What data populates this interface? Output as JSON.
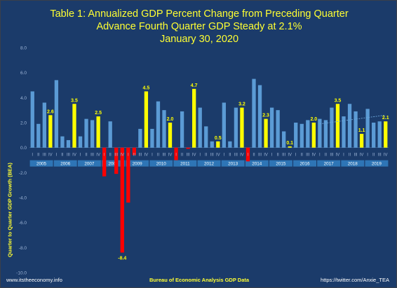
{
  "chart_data": {
    "type": "bar",
    "title": "Table 1: Annualized GDP Percent Change from Preceding Quarter",
    "subtitle": "Advance Fourth Quarter GDP Steady at 2.1%",
    "date": "January 30, 2020",
    "ylabel": "Quarter to Quarter GDP Growth (BEA)",
    "xlabel": "Bureau of Economic Analysis GDP Data",
    "ylim": [
      -10,
      8
    ],
    "yticks": [
      "8.0",
      "6.0",
      "4.0",
      "2.0",
      "0.0",
      "-2.0",
      "-4.0",
      "-6.0",
      "-8.0",
      "-10.0"
    ],
    "quarter_labels": [
      "I",
      "II",
      "III",
      "IV"
    ],
    "years": [
      "2005",
      "2006",
      "2007",
      "2008",
      "2009",
      "2010",
      "2011",
      "2012",
      "2013",
      "2014",
      "2015",
      "2016",
      "2017",
      "2018",
      "2019"
    ],
    "values": [
      4.5,
      1.9,
      3.6,
      2.6,
      5.4,
      0.9,
      0.6,
      3.5,
      0.9,
      2.3,
      2.2,
      2.5,
      -2.3,
      2.1,
      -2.1,
      -8.4,
      -4.4,
      -0.6,
      1.5,
      4.5,
      1.5,
      3.7,
      3.0,
      2.0,
      -1.0,
      2.9,
      -0.1,
      4.7,
      3.2,
      1.7,
      0.5,
      0.5,
      3.6,
      0.5,
      3.2,
      3.2,
      -1.1,
      5.5,
      5.0,
      2.3,
      3.2,
      3.0,
      1.3,
      0.1,
      2.0,
      1.9,
      2.2,
      2.0,
      2.3,
      2.2,
      3.2,
      3.5,
      2.5,
      3.5,
      2.9,
      1.1,
      3.1,
      2.0,
      2.1,
      2.1
    ],
    "highlight_indices": [
      3,
      7,
      11,
      19,
      23,
      27,
      31,
      35,
      39,
      43,
      47,
      51,
      55,
      59
    ],
    "data_labels": [
      {
        "index": 3,
        "text": "2.6"
      },
      {
        "index": 7,
        "text": "3.5"
      },
      {
        "index": 11,
        "text": "2.5"
      },
      {
        "index": 15,
        "text": "-8.4"
      },
      {
        "index": 19,
        "text": "4.5"
      },
      {
        "index": 23,
        "text": "2.0"
      },
      {
        "index": 27,
        "text": "4.7"
      },
      {
        "index": 31,
        "text": "0.5"
      },
      {
        "index": 35,
        "text": "3.2"
      },
      {
        "index": 39,
        "text": "2.3"
      },
      {
        "index": 43,
        "text": "0.1"
      },
      {
        "index": 47,
        "text": "2.0"
      },
      {
        "index": 51,
        "text": "3.5"
      },
      {
        "index": 55,
        "text": "1.1"
      },
      {
        "index": 59,
        "text": "2.1"
      }
    ],
    "trendline": {
      "x": [
        48,
        59
      ],
      "y": [
        1.9,
        2.6
      ]
    },
    "colors": {
      "background": "#1b3b6a",
      "bar": "#5b9bd5",
      "q4_bar": "#ffff00",
      "negative_bar": "#ff0000",
      "year_band": "#2e75b6",
      "title": "#ffff33",
      "axis_text": "#9fb6d8",
      "trendline": "#6fa8dc"
    },
    "grid": false
  },
  "footer": {
    "left": "www.itstheeconomy.info",
    "right": "https://twitter.com/Anxie_TEA"
  }
}
